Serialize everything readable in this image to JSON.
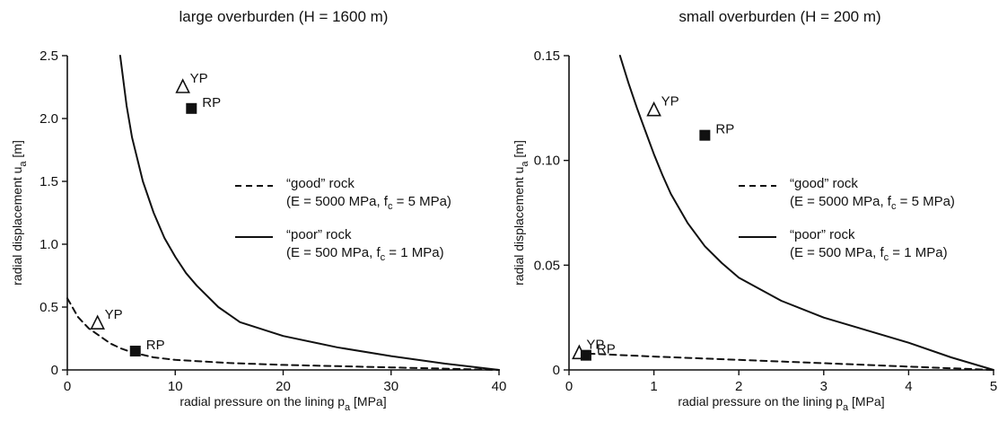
{
  "chart_data": [
    {
      "type": "line",
      "title": "large overburden (H = 1600 m)",
      "xlabel": {
        "main": "radial pressure on the lining p",
        "sub": "a",
        "tail": " [MPa]"
      },
      "ylabel": {
        "main": "radial displacement u",
        "sub": "a",
        "tail": " [m]"
      },
      "xlim": [
        0,
        40
      ],
      "ylim": [
        0,
        2.5
      ],
      "x_ticks": [
        0,
        10,
        20,
        30,
        40
      ],
      "x_tick_labels": [
        "0",
        "10",
        "20",
        "30",
        "40"
      ],
      "y_ticks": [
        0,
        0.5,
        1.0,
        1.5,
        2.0,
        2.5
      ],
      "y_tick_labels": [
        "0",
        "0.5",
        "1.0",
        "1.5",
        "2.0",
        "2.5"
      ],
      "legend_position": "center-right",
      "series": [
        {
          "name": "“good” rock",
          "detail": {
            "lead": "(E = 5000 MPa, f",
            "sub": "c",
            "tail": " = 5 MPa)"
          },
          "style": "dashed",
          "x": [
            0,
            1,
            2,
            3,
            4,
            5,
            6,
            8,
            10,
            15,
            20,
            25,
            30,
            35,
            40
          ],
          "y": [
            0.57,
            0.42,
            0.33,
            0.27,
            0.21,
            0.17,
            0.14,
            0.1,
            0.08,
            0.055,
            0.04,
            0.03,
            0.02,
            0.01,
            0
          ]
        },
        {
          "name": "“poor” rock",
          "detail": {
            "lead": "(E = 500 MPa, f",
            "sub": "c",
            "tail": " = 1 MPa)"
          },
          "style": "solid",
          "x": [
            4.9,
            5.5,
            6,
            7,
            8,
            9,
            10,
            11,
            12,
            14,
            16,
            20,
            25,
            30,
            35,
            40
          ],
          "y": [
            2.5,
            2.1,
            1.85,
            1.5,
            1.25,
            1.05,
            0.9,
            0.77,
            0.67,
            0.5,
            0.38,
            0.27,
            0.18,
            0.11,
            0.05,
            0
          ]
        }
      ],
      "points": [
        {
          "label": "YP",
          "shape": "triangle",
          "x": 10.7,
          "y": 2.25
        },
        {
          "label": "RP",
          "shape": "square",
          "x": 11.5,
          "y": 2.08
        },
        {
          "label": "YP",
          "shape": "triangle",
          "x": 2.8,
          "y": 0.37
        },
        {
          "label": "RP",
          "shape": "square",
          "x": 6.3,
          "y": 0.15
        }
      ]
    },
    {
      "type": "line",
      "title": "small overburden (H = 200 m)",
      "xlabel": {
        "main": "radial pressure on the lining p",
        "sub": "a",
        "tail": " [MPa]"
      },
      "ylabel": {
        "main": "radial displacement u",
        "sub": "a",
        "tail": " [m]"
      },
      "xlim": [
        0,
        5
      ],
      "ylim": [
        0,
        0.15
      ],
      "x_ticks": [
        0,
        1,
        2,
        3,
        4,
        5
      ],
      "x_tick_labels": [
        "0",
        "1",
        "2",
        "3",
        "4",
        "5"
      ],
      "y_ticks": [
        0,
        0.05,
        0.1,
        0.15
      ],
      "y_tick_labels": [
        "0",
        "0.05",
        "0.10",
        "0.15"
      ],
      "legend_position": "center-right",
      "series": [
        {
          "name": "“good” rock",
          "detail": {
            "lead": "(E = 5000 MPa, f",
            "sub": "c",
            "tail": " = 5 MPa)"
          },
          "style": "dashed",
          "x": [
            0.1,
            1,
            2,
            3,
            4,
            5
          ],
          "y": [
            0.008,
            0.0064,
            0.0048,
            0.0032,
            0.0016,
            0
          ]
        },
        {
          "name": "“poor” rock",
          "detail": {
            "lead": "(E = 500 MPa, f",
            "sub": "c",
            "tail": " = 1 MPa)"
          },
          "style": "solid",
          "x": [
            0.6,
            0.7,
            0.8,
            0.9,
            1.0,
            1.1,
            1.2,
            1.4,
            1.6,
            1.8,
            2.0,
            2.5,
            3.0,
            3.5,
            4.0,
            4.5,
            5.0
          ],
          "y": [
            0.15,
            0.137,
            0.125,
            0.114,
            0.103,
            0.093,
            0.084,
            0.07,
            0.059,
            0.051,
            0.044,
            0.033,
            0.025,
            0.019,
            0.013,
            0.006,
            0
          ]
        }
      ],
      "points": [
        {
          "label": "YP",
          "shape": "triangle",
          "x": 1.0,
          "y": 0.124
        },
        {
          "label": "RP",
          "shape": "square",
          "x": 1.6,
          "y": 0.112
        },
        {
          "label": "YP",
          "shape": "triangle",
          "x": 0.12,
          "y": 0.008
        },
        {
          "label": "RP",
          "shape": "square",
          "x": 0.2,
          "y": 0.007
        }
      ]
    }
  ]
}
